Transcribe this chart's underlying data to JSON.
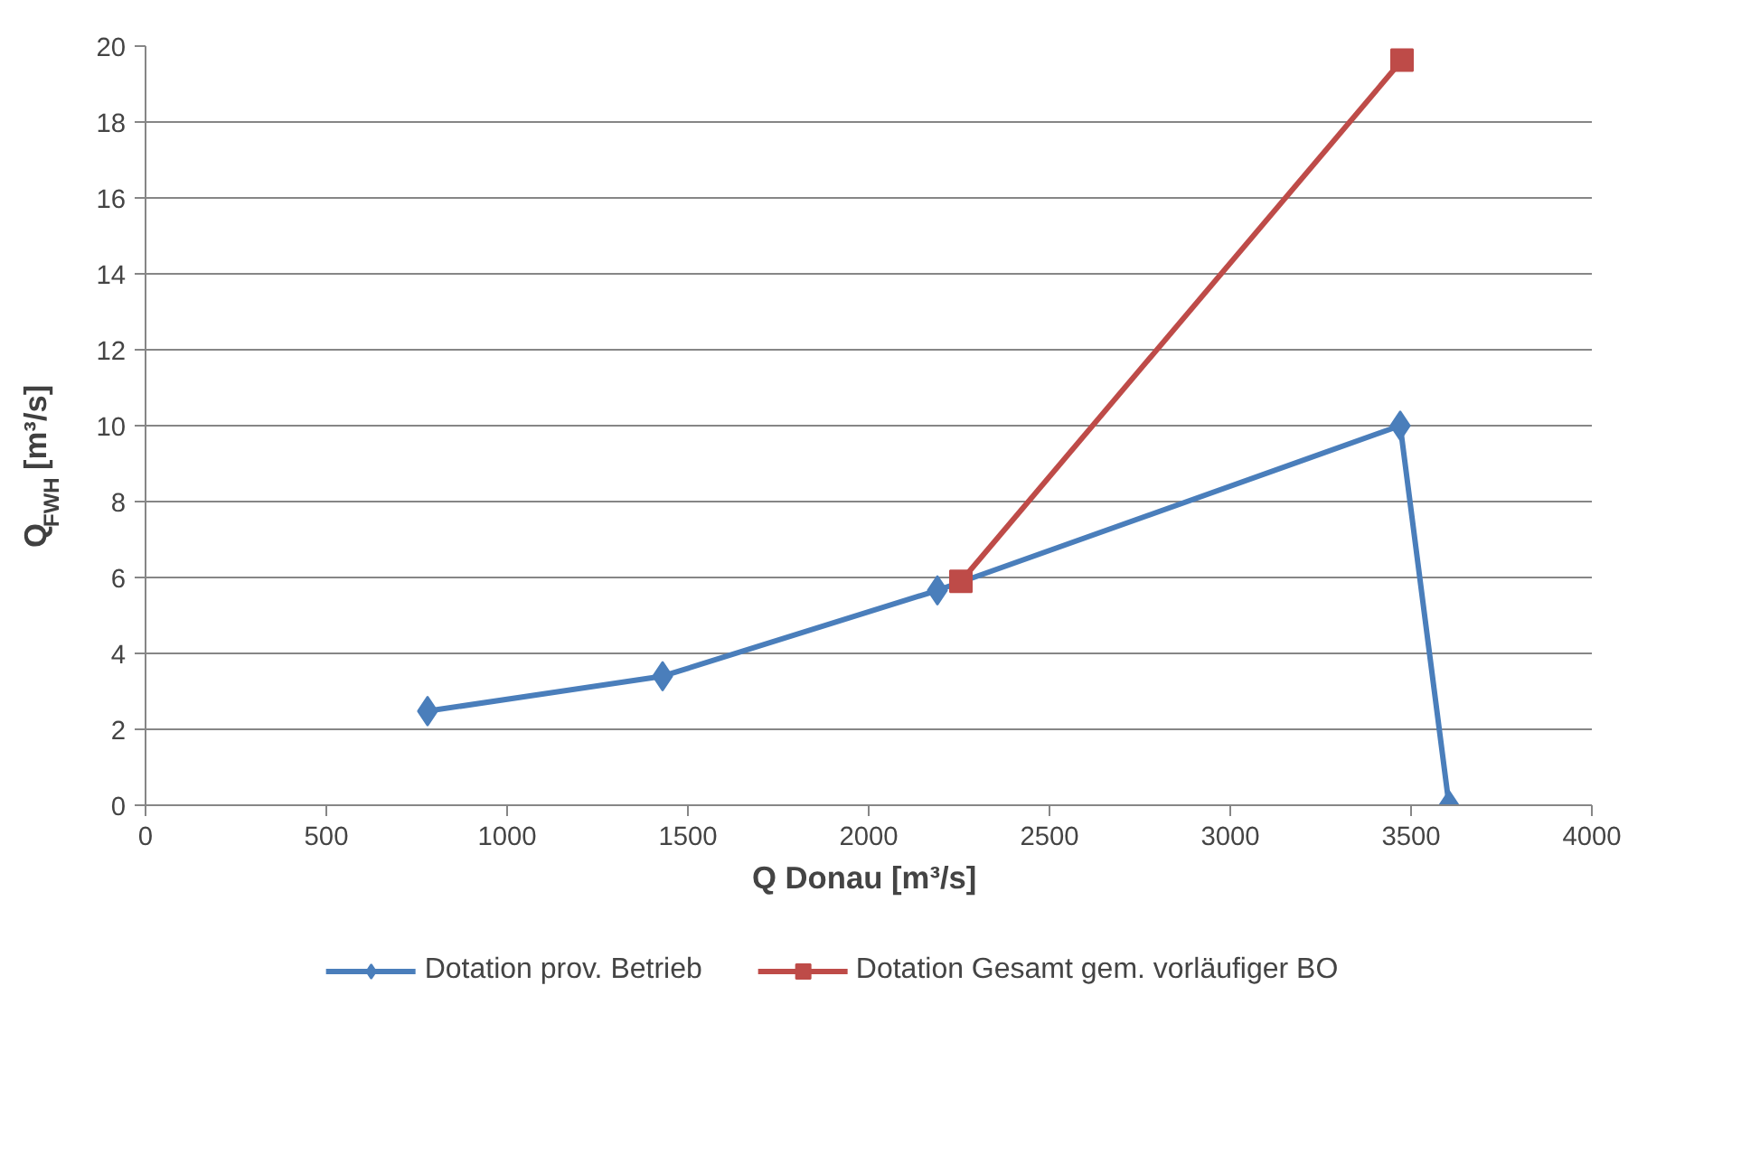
{
  "chart_data": {
    "type": "line",
    "xlabel": "Q Donau  [m³/s]",
    "ylabel": "Q$_{FWH}$  [m³/s]",
    "xlim": [
      0,
      4000
    ],
    "xticks": [
      0,
      500,
      1000,
      1500,
      2000,
      2500,
      3000,
      3500,
      4000
    ],
    "ylim": [
      0,
      20
    ],
    "yticks": [
      0,
      2,
      4,
      6,
      8,
      10,
      12,
      14,
      16,
      18,
      20
    ],
    "grid": "y",
    "legend": "bottom",
    "line_style": "solid",
    "series": [
      {
        "name": "Dotation prov. Betrieb",
        "color": "#4a7ebb",
        "marker": "diamond",
        "x": [
          780,
          1430,
          2190,
          3470,
          3605
        ],
        "values": [
          2.48,
          3.4,
          5.66,
          10,
          0
        ]
      },
      {
        "name": "Dotation Gesamt gem. vorläufiger BO",
        "color": "#be4b48",
        "marker": "square",
        "x": [
          2255,
          3475
        ],
        "values": [
          5.9,
          19.63
        ]
      }
    ]
  }
}
